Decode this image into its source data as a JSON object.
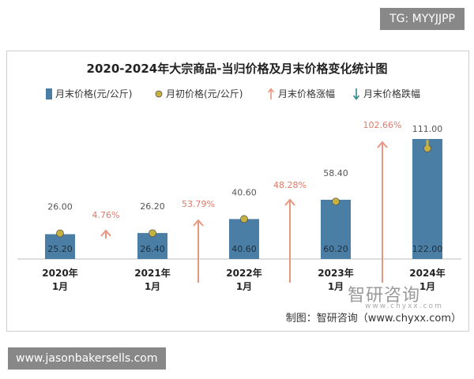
{
  "watermark_top": "TG: MYYJJPP",
  "watermark_bottom": "www.jasonbakersells.com",
  "source_text": "制图：智研咨询（www.chyxx.com）",
  "brand_text": "智研咨询",
  "brand_sub": "www.chyxx.com",
  "colors": {
    "bar": "#4a7ea4",
    "dot": "#c8b23f",
    "up": "#e8967f",
    "down": "#2f8a8f"
  },
  "chart_data": {
    "type": "bar",
    "title": "2020-2024年大宗商品-当归价格及月末价格变化统计图",
    "legend": [
      "月末价格(元/公斤)",
      "月初价格(元/公斤)",
      "月末价格涨幅",
      "月末价格跌幅"
    ],
    "categories": [
      {
        "year": "2020年",
        "month": "1月"
      },
      {
        "year": "2021年",
        "month": "1月"
      },
      {
        "year": "2022年",
        "month": "1月"
      },
      {
        "year": "2023年",
        "month": "1月"
      },
      {
        "year": "2024年",
        "month": "1月"
      }
    ],
    "series": [
      {
        "name": "月末价格(元/公斤)",
        "values": [
          25.2,
          26.4,
          40.6,
          60.2,
          122.0
        ],
        "labels": [
          "25.20",
          "26.40",
          "40.60",
          "60.20",
          "122.00"
        ]
      },
      {
        "name": "月初价格(元/公斤)",
        "values": [
          26.0,
          26.2,
          40.6,
          58.4,
          111.0
        ],
        "labels": [
          "26.00",
          "26.20",
          "40.60",
          "58.40",
          "111.00"
        ]
      }
    ],
    "changes": [
      {
        "label": "4.76%",
        "direction": "up"
      },
      {
        "label": "53.79%",
        "direction": "up"
      },
      {
        "label": "48.28%",
        "direction": "up"
      },
      {
        "label": "102.66%",
        "direction": "up"
      }
    ]
  }
}
